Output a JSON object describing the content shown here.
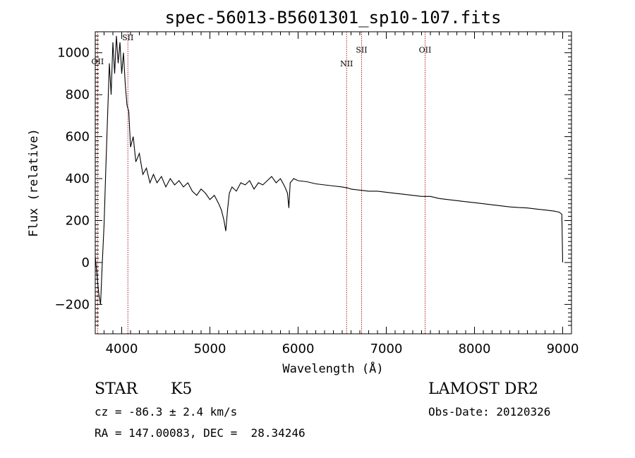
{
  "chart_data": {
    "type": "line",
    "title": "spec-56013-B5601301_sp10-107.fits",
    "xlabel": "Wavelength (Å)",
    "ylabel": "Flux (relative)",
    "xlim": [
      3700,
      9100
    ],
    "ylim": [
      -340,
      1100
    ],
    "x_ticks": [
      4000,
      5000,
      6000,
      7000,
      8000,
      9000
    ],
    "y_ticks": [
      -200,
      0,
      200,
      400,
      600,
      800,
      1000
    ],
    "grid": false,
    "line_color": "#000000",
    "marker_color": "#b22222",
    "series": [
      {
        "x": [
          3700,
          3720,
          3740,
          3760,
          3780,
          3800,
          3820,
          3840,
          3860,
          3880,
          3900,
          3920,
          3940,
          3960,
          3980,
          4000,
          4020,
          4040,
          4060,
          4080,
          4100,
          4130,
          4160,
          4200,
          4240,
          4280,
          4320,
          4360,
          4400,
          4450,
          4500,
          4550,
          4600,
          4650,
          4700,
          4750,
          4800,
          4850,
          4900,
          4950,
          5000,
          5050,
          5100,
          5130,
          5160,
          5180,
          5200,
          5220,
          5250,
          5300,
          5350,
          5400,
          5450,
          5500,
          5550,
          5600,
          5650,
          5700,
          5750,
          5800,
          5850,
          5880,
          5895,
          5910,
          5950,
          6000,
          6100,
          6200,
          6300,
          6400,
          6500,
          6563,
          6600,
          6700,
          6800,
          6900,
          7000,
          7100,
          7200,
          7300,
          7400,
          7500,
          7600,
          7700,
          7800,
          7900,
          8000,
          8100,
          8200,
          8300,
          8400,
          8500,
          8600,
          8700,
          8800,
          8900,
          8960,
          8990,
          9000
        ],
        "y": [
          30,
          -60,
          -150,
          -200,
          0,
          180,
          450,
          700,
          950,
          800,
          1050,
          900,
          1080,
          950,
          1050,
          900,
          1000,
          850,
          750,
          720,
          550,
          600,
          480,
          520,
          420,
          450,
          380,
          420,
          380,
          410,
          360,
          400,
          370,
          390,
          360,
          380,
          340,
          320,
          350,
          330,
          300,
          320,
          280,
          250,
          200,
          150,
          250,
          330,
          360,
          340,
          380,
          370,
          390,
          350,
          380,
          370,
          390,
          410,
          380,
          400,
          360,
          330,
          260,
          380,
          400,
          390,
          385,
          375,
          370,
          365,
          360,
          355,
          350,
          345,
          340,
          340,
          335,
          330,
          325,
          320,
          315,
          315,
          305,
          300,
          295,
          290,
          285,
          280,
          275,
          270,
          265,
          262,
          260,
          255,
          250,
          245,
          240,
          230,
          0
        ]
      }
    ],
    "line_markers": [
      {
        "label": "OII",
        "x": 3727,
        "label_y": 945
      },
      {
        "label": "SII",
        "x": 4070,
        "label_y": 1060
      },
      {
        "label": "NII",
        "x": 6550,
        "label_y": 935
      },
      {
        "label": "SII",
        "x": 6720,
        "label_y": 1000
      },
      {
        "label": "OII",
        "x": 7440,
        "label_y": 1000
      }
    ]
  },
  "info": {
    "class": "STAR",
    "subclass": "K5",
    "survey": "LAMOST DR2",
    "cz": "cz = -86.3 ± 2.4 km/s",
    "obs_date": "Obs-Date: 20120326",
    "coords": "RA = 147.00083, DEC =  28.34246"
  }
}
